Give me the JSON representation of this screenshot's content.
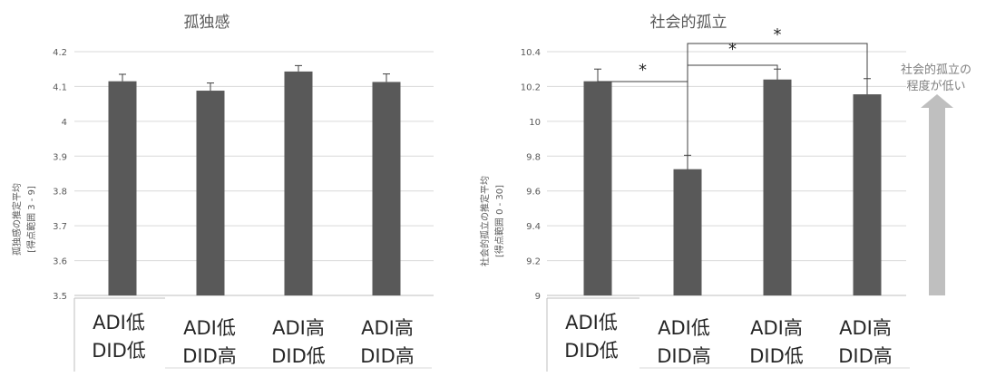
{
  "chart_data": [
    {
      "type": "bar",
      "title": "孤独感",
      "ylabel_lines": [
        "孤独感の推定平均",
        "[得点範囲 3 - 9]"
      ],
      "ylim": [
        3.5,
        4.2
      ],
      "yticks": [
        "3.5",
        "3.6",
        "3.7",
        "3.8",
        "3.9",
        "4",
        "4.1",
        "4.2"
      ],
      "categories": [
        [
          "ADI低",
          "DID低"
        ],
        [
          "ADI低",
          "DID高"
        ],
        [
          "ADI高",
          "DID低"
        ],
        [
          "ADI高",
          "DID高"
        ]
      ],
      "values": [
        4.115,
        4.088,
        4.143,
        4.113
      ],
      "errors": [
        0.02,
        0.022,
        0.017,
        0.023
      ]
    },
    {
      "type": "bar",
      "title": "社会的孤立",
      "ylabel_lines": [
        "社会的孤立の推定平均",
        "[得点範囲 0 - 30]"
      ],
      "ylim": [
        9,
        10.4
      ],
      "yticks": [
        "9",
        "9.2",
        "9.4",
        "9.6",
        "9.8",
        "10",
        "10.2",
        "10.4"
      ],
      "categories": [
        [
          "ADI低",
          "DID低"
        ],
        [
          "ADI低",
          "DID高"
        ],
        [
          "ADI高",
          "DID低"
        ],
        [
          "ADI高",
          "DID高"
        ]
      ],
      "values": [
        10.23,
        9.725,
        10.24,
        10.155
      ],
      "errors": [
        0.07,
        0.08,
        0.06,
        0.09
      ],
      "significance": [
        {
          "from": 0,
          "to": 1,
          "label": "*"
        },
        {
          "from": 1,
          "to": 2,
          "label": "*"
        },
        {
          "from": 1,
          "to": 3,
          "label": "*"
        }
      ],
      "annotation_lines": [
        "社会的孤立の",
        "程度が低い"
      ],
      "arrow_color": "#bfbfbf"
    }
  ]
}
